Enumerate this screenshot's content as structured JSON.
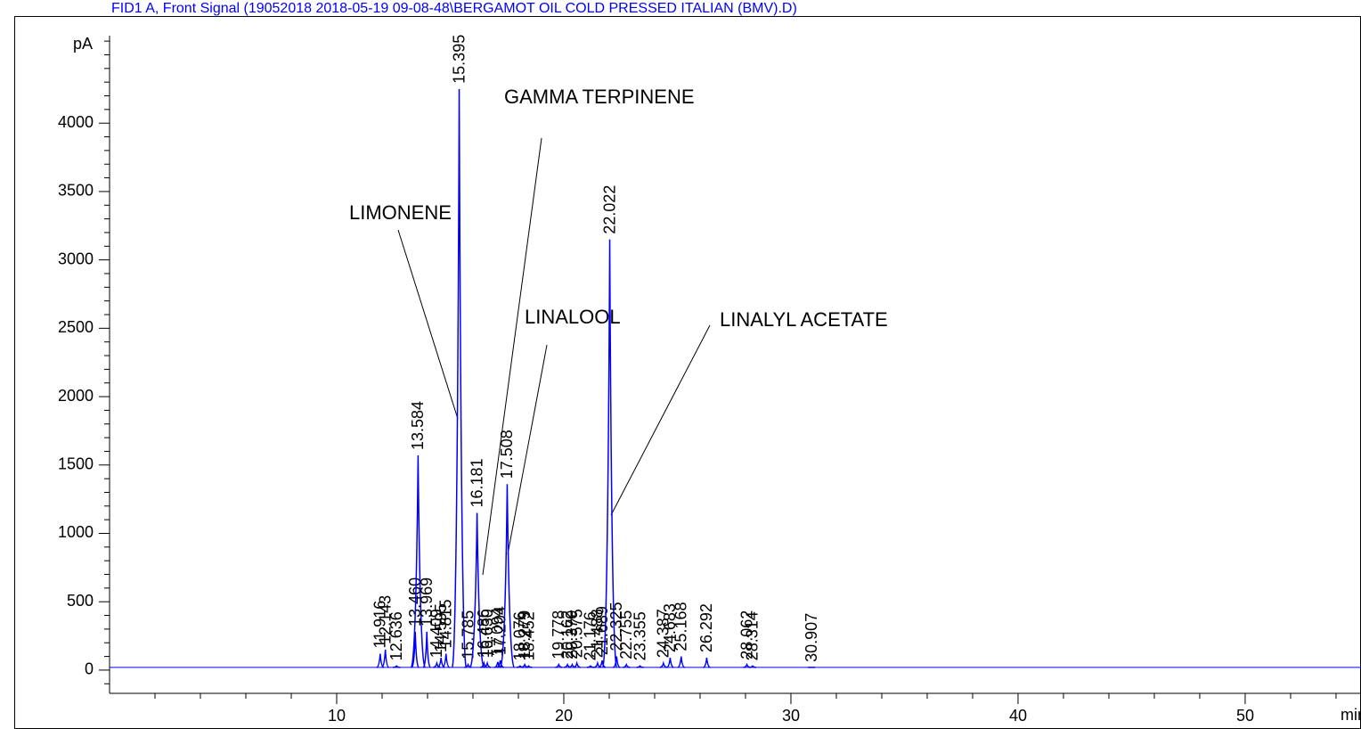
{
  "chart_data": {
    "type": "chromatogram",
    "title": "FID1 A, Front Signal (19052018 2018-05-19 09-08-48\\BERGAMOT OIL COLD PRESSED ITALIAN (BMV).D)",
    "y_label": "pA",
    "x_label": "min",
    "color": "#0000ff",
    "baseline": 20,
    "xlim": [
      0,
      55.1
    ],
    "ylim": [
      -170,
      4640
    ],
    "xticks": [
      10,
      20,
      30,
      40,
      50
    ],
    "xminor_ticks": [
      2,
      4,
      6,
      8,
      12,
      14,
      16,
      18,
      22,
      24,
      26,
      28,
      32,
      34,
      36,
      38,
      42,
      44,
      46,
      48,
      52,
      54
    ],
    "yticks": [
      0,
      500,
      1000,
      1500,
      2000,
      2500,
      3000,
      3500,
      4000
    ],
    "yminor_ticks": [
      -100,
      100,
      200,
      300,
      400,
      600,
      700,
      800,
      900,
      1100,
      1200,
      1300,
      1400,
      1600,
      1700,
      1800,
      1900,
      2100,
      2200,
      2300,
      2400,
      2600,
      2700,
      2800,
      2900,
      3100,
      3200,
      3300,
      3400,
      3600,
      3700,
      3800,
      3900,
      4100,
      4200,
      4300,
      4400,
      4500,
      4600
    ],
    "x": [
      11.916,
      12.143,
      12.636,
      13.46,
      13.584,
      13.969,
      14.409,
      14.595,
      14.815,
      15.395,
      15.785,
      16.181,
      16.486,
      16.63,
      17.094,
      17.204,
      17.508,
      18.076,
      18.279,
      18.452,
      19.778,
      20.162,
      20.37,
      20.575,
      21.176,
      21.488,
      21.689,
      22.022,
      22.325,
      22.755,
      23.355,
      24.387,
      24.683,
      25.168,
      26.292,
      28.062,
      28.314,
      30.907
    ],
    "x_labels": [
      "11.916",
      "12.143",
      "12.636",
      "13.460",
      "13.584",
      "13.969",
      "14.409",
      "14.595",
      "14.815",
      "15.395",
      "15.785",
      "16.181",
      "16.486",
      "16.630",
      "17.094",
      "17.204",
      "17.508",
      "18.076",
      "18.279",
      "18.452",
      "19.778",
      "20.162",
      "20.370",
      "20.575",
      "21.176",
      "21.488",
      "21.689",
      "22.022",
      "22.325",
      "22.755",
      "23.355",
      "24.387",
      "24.683",
      "25.168",
      "26.292",
      "28.062",
      "28.314",
      "30.907"
    ],
    "values": [
      120,
      150,
      30,
      280,
      1570,
      280,
      50,
      90,
      120,
      4250,
      40,
      1150,
      50,
      50,
      60,
      70,
      1360,
      30,
      40,
      30,
      40,
      40,
      40,
      50,
      30,
      50,
      70,
      3150,
      100,
      40,
      30,
      50,
      90,
      100,
      90,
      40,
      30,
      20
    ],
    "annotations": [
      "LIMONENE",
      "GAMMA TERPINENE",
      "LINALOOL",
      "LINALYL ACETATE"
    ]
  }
}
